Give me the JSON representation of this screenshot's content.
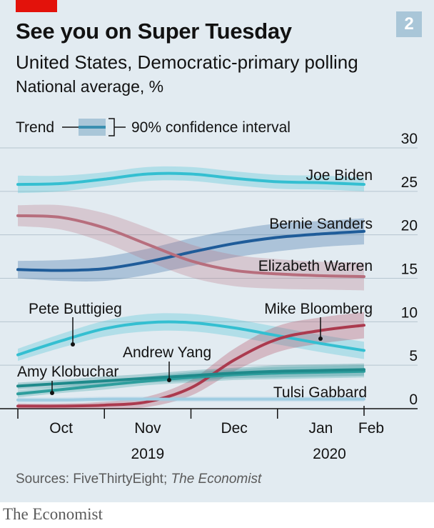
{
  "header": {
    "badge": "2",
    "title": "See you on Super Tuesday",
    "subtitle": "United States, Democratic-primary polling",
    "unit": "National average, %"
  },
  "legend": {
    "trend_label": "Trend",
    "ci_label": "90% confidence interval"
  },
  "footer": {
    "sources_prefix": "Sources: FiveThirtyEight; ",
    "sources_italic": "The Economist",
    "brand": "The Economist"
  },
  "colors": {
    "background": "#e2ebf1",
    "red_tag": "#e3120b",
    "biden": "#34bfd1",
    "sanders": "#1f5c99",
    "warren": "#b76e7d",
    "buttigieg": "#34bfd1",
    "bloomberg": "#ab3a4e",
    "yang": "#2e9e9d",
    "klobuchar": "#1f8a8b",
    "gabbard": "#a0cde2"
  },
  "chart_data": {
    "type": "line",
    "title": "See you on Super Tuesday",
    "subtitle": "United States, Democratic-primary polling",
    "ylabel": "National average, %",
    "ylim": [
      0,
      30
    ],
    "yticks": [
      0,
      5,
      10,
      15,
      20,
      25,
      30
    ],
    "x_axis": {
      "month_labels": [
        {
          "label": "Oct",
          "pos": 0.5
        },
        {
          "label": "Nov",
          "pos": 1.5
        },
        {
          "label": "Dec",
          "pos": 2.5
        },
        {
          "label": "Jan",
          "pos": 3.5
        },
        {
          "label": "Feb",
          "pos": 4.0
        }
      ],
      "year_labels": [
        {
          "label": "2019",
          "pos": 1.5
        },
        {
          "label": "2020",
          "pos": 3.6
        }
      ]
    },
    "x": [
      0,
      0.5,
      1,
      1.5,
      2,
      2.5,
      3,
      3.5,
      4
    ],
    "series": [
      {
        "name": "Joe Biden",
        "color_key": "biden",
        "values": [
          25.8,
          25.9,
          26.4,
          27.0,
          27.0,
          26.5,
          26.1,
          26.0,
          25.8
        ],
        "ci": [
          1.0,
          0.9,
          0.8,
          0.8,
          0.8,
          0.8,
          0.8,
          0.8,
          0.8
        ]
      },
      {
        "name": "Bernie Sanders",
        "color_key": "sanders",
        "values": [
          16.0,
          15.9,
          16.1,
          16.9,
          18.0,
          19.0,
          19.7,
          20.1,
          20.4
        ],
        "ci": [
          1.0,
          1.2,
          1.4,
          1.5,
          1.6,
          1.6,
          1.6,
          1.5,
          1.5
        ]
      },
      {
        "name": "Elizabeth Warren",
        "color_key": "warren",
        "values": [
          22.2,
          22.0,
          20.8,
          18.9,
          17.0,
          15.9,
          15.5,
          15.3,
          15.2
        ],
        "ci": [
          1.2,
          1.4,
          1.7,
          1.9,
          1.9,
          1.8,
          1.7,
          1.6,
          1.6
        ]
      },
      {
        "name": "Pete Buttigieg",
        "color_key": "buttigieg",
        "values": [
          6.2,
          7.8,
          9.2,
          9.9,
          9.9,
          9.3,
          8.4,
          7.5,
          6.7
        ],
        "ci": [
          0.7,
          0.8,
          0.9,
          1.0,
          1.0,
          1.0,
          1.0,
          1.0,
          1.0
        ]
      },
      {
        "name": "Mike Bloomberg",
        "color_key": "bloomberg",
        "values": [
          0.3,
          0.3,
          0.4,
          0.8,
          2.4,
          5.6,
          8.0,
          9.0,
          9.6
        ],
        "ci": [
          0.3,
          0.3,
          0.4,
          0.6,
          0.9,
          1.3,
          1.5,
          1.5,
          1.5
        ]
      },
      {
        "name": "Andrew Yang",
        "color_key": "yang",
        "values": [
          1.7,
          2.2,
          2.7,
          3.2,
          3.6,
          3.9,
          4.1,
          4.2,
          4.3
        ],
        "ci": [
          0.4,
          0.4,
          0.5,
          0.5,
          0.6,
          0.6,
          0.7,
          0.7,
          0.7
        ]
      },
      {
        "name": "Amy Klobuchar",
        "color_key": "klobuchar",
        "values": [
          2.6,
          2.9,
          3.2,
          3.5,
          3.8,
          4.1,
          4.3,
          4.4,
          4.5
        ],
        "ci": [
          0.4,
          0.4,
          0.5,
          0.5,
          0.6,
          0.6,
          0.7,
          0.7,
          0.7
        ]
      },
      {
        "name": "Tulsi Gabbard",
        "color_key": "gabbard",
        "values": [
          1.0,
          1.0,
          1.1,
          1.1,
          1.1,
          1.1,
          1.1,
          1.1,
          1.1
        ],
        "ci": [
          0.3,
          0.3,
          0.3,
          0.3,
          0.3,
          0.3,
          0.3,
          0.3,
          0.3
        ]
      }
    ],
    "annotations": [
      {
        "text": "Joe Biden",
        "series": "Joe Biden"
      },
      {
        "text": "Bernie Sanders",
        "series": "Bernie Sanders"
      },
      {
        "text": "Elizabeth Warren",
        "series": "Elizabeth Warren"
      },
      {
        "text": "Pete Buttigieg",
        "series": "Pete Buttigieg"
      },
      {
        "text": "Mike Bloomberg",
        "series": "Mike Bloomberg"
      },
      {
        "text": "Andrew Yang",
        "series": "Andrew Yang"
      },
      {
        "text": "Amy Klobuchar",
        "series": "Amy Klobuchar"
      },
      {
        "text": "Tulsi Gabbard",
        "series": "Tulsi Gabbard"
      }
    ]
  }
}
